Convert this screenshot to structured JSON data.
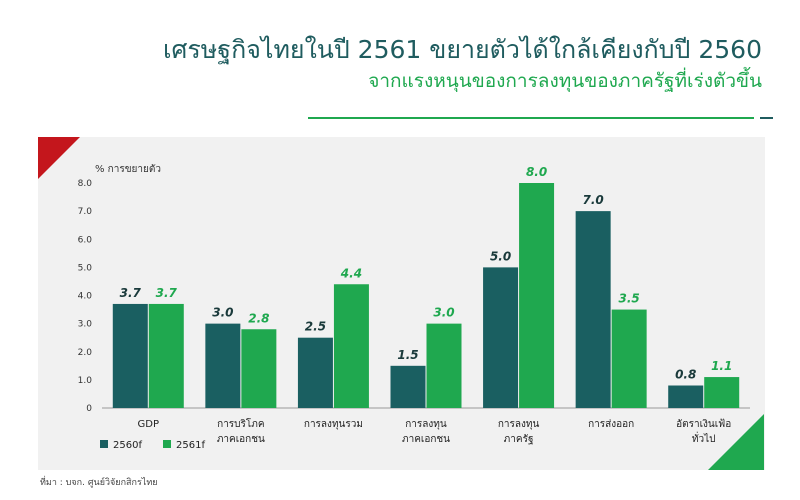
{
  "header": {
    "title": "เศรษฐกิจไทยในปี 2561 ขยายตัวได้ใกล้เคียงกับปี 2560",
    "subtitle": "จากแรงหนุนของการลงทุนของภาครัฐที่เร่งตัวขึ้น"
  },
  "footer": {
    "source": "ที่มา : บจก. ศูนย์วิจัยกสิกรไทย"
  },
  "chart_data": {
    "type": "bar",
    "title": "เศรษฐกิจไทยในปี 2561 ขยายตัวได้ใกล้เคียงกับปี 2560",
    "ylabel": "% การขยายตัว",
    "xlabel": "",
    "ylim": [
      0,
      8.0
    ],
    "yticks": [
      "0",
      "1.0",
      "2.0",
      "3.0",
      "4.0",
      "5.0",
      "6.0",
      "7.0",
      "8.0"
    ],
    "categories": [
      [
        "GDP"
      ],
      [
        "การบริโภค",
        "ภาคเอกชน"
      ],
      [
        "การลงทุนรวม"
      ],
      [
        "การลงทุน",
        "ภาคเอกชน"
      ],
      [
        "การลงทุน",
        "ภาครัฐ"
      ],
      [
        "การส่งออก"
      ],
      [
        "อัตราเงินเฟ้อ",
        "ทั่วไป"
      ]
    ],
    "series": [
      {
        "name": "2560f",
        "color": "#1a5f61",
        "values": [
          3.7,
          3.0,
          2.5,
          1.5,
          5.0,
          7.0,
          0.8
        ],
        "labels": [
          "3.7",
          "3.0",
          "2.5",
          "1.5",
          "5.0",
          "7.0",
          "0.8"
        ]
      },
      {
        "name": "2561f",
        "color": "#1fa84f",
        "values": [
          3.7,
          2.8,
          4.4,
          3.0,
          8.0,
          3.5,
          1.1
        ],
        "labels": [
          "3.7",
          "2.8",
          "4.4",
          "3.0",
          "8.0",
          "3.5",
          "1.1"
        ]
      }
    ],
    "grid": false,
    "legend": "bottom-left"
  }
}
